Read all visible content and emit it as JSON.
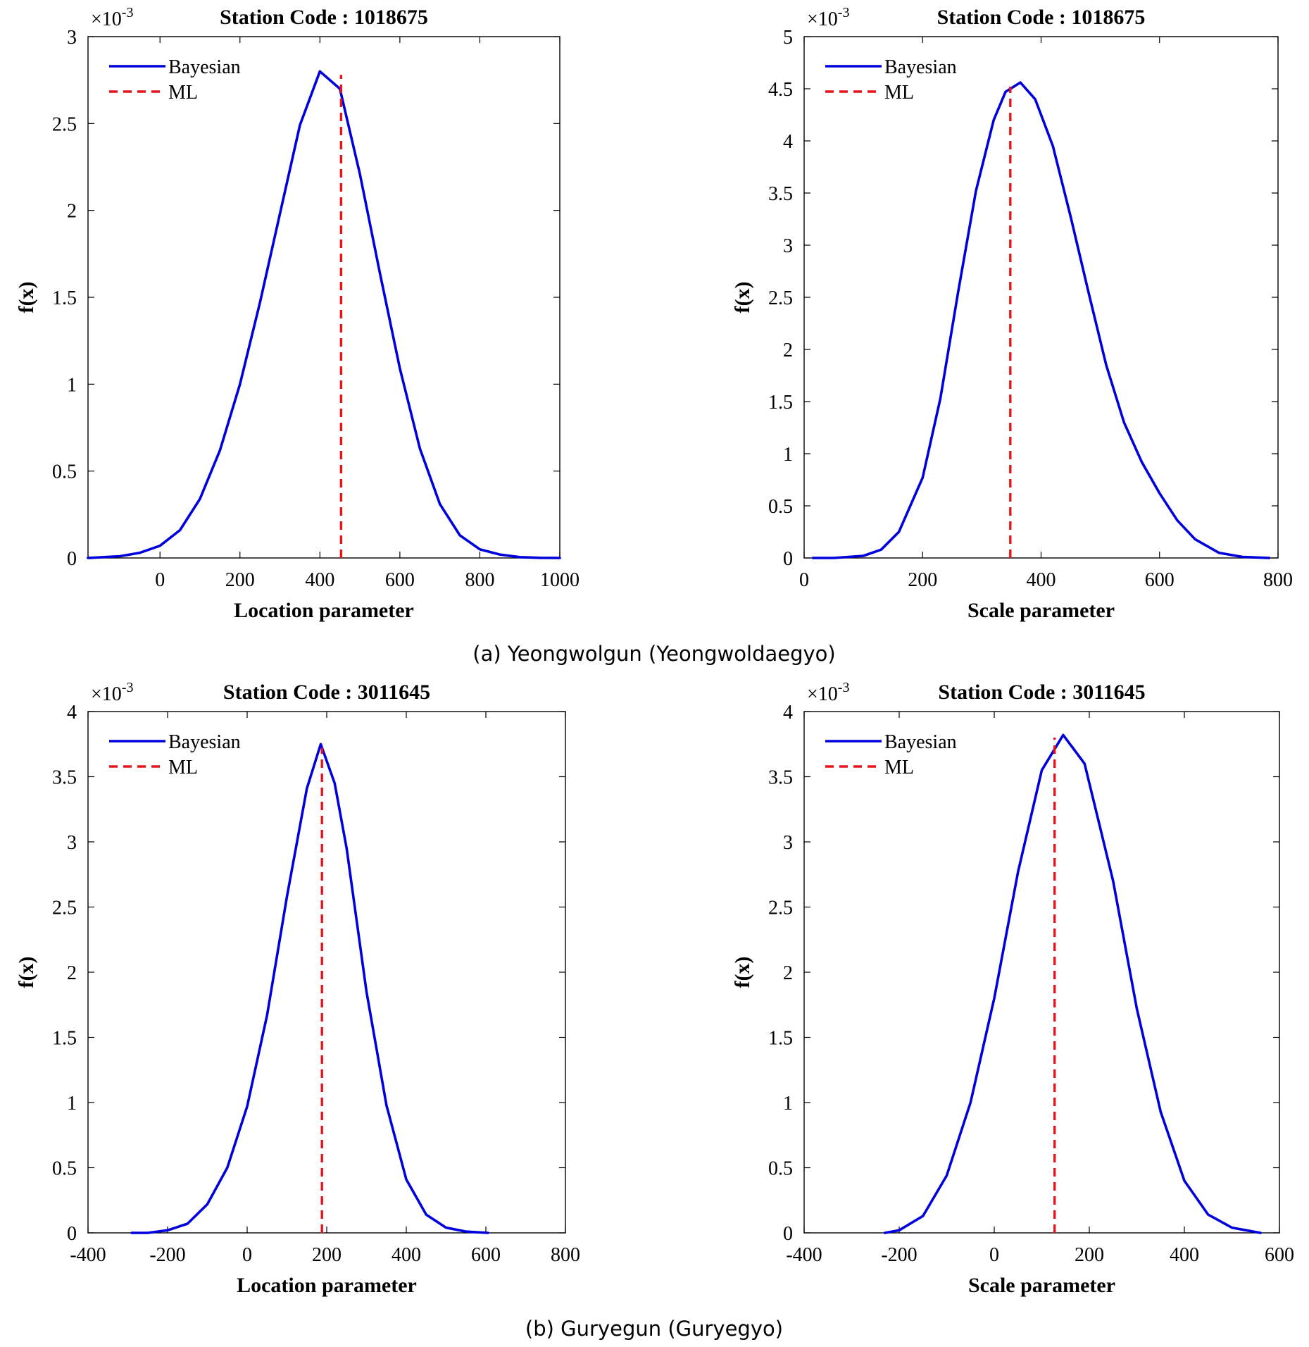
{
  "captions": {
    "a": "(a) Yeongwolgun (Yeongwoldaegyo)",
    "b": "(b) Guryegun (Guryegyo)"
  },
  "colors": {
    "bayesian": "#0000DD",
    "ml": "#E8141B",
    "axis": "#000000"
  },
  "chart_data": [
    {
      "type": "line",
      "title": "Station Code : 1018675",
      "xlabel": "Location parameter",
      "ylabel": "f(x)",
      "y_multiplier": {
        "base": "×10",
        "exp": "-3"
      },
      "xlim": [
        -180,
        1000
      ],
      "ylim": [
        0,
        3
      ],
      "x_ticks": [
        0,
        200,
        400,
        600,
        800,
        1000
      ],
      "x_tick_labels": [
        "0",
        "200",
        "400",
        "600",
        "800",
        "1000"
      ],
      "y_ticks": [
        0,
        0.5,
        1,
        1.5,
        2,
        2.5,
        3
      ],
      "y_tick_labels": [
        "0",
        "0.5",
        "1",
        "1.5",
        "2",
        "2.5",
        "3"
      ],
      "series": [
        {
          "name": "Bayesian",
          "style": "solid",
          "x": [
            -180,
            -100,
            -50,
            0,
            50,
            100,
            150,
            200,
            250,
            300,
            350,
            400,
            450,
            500,
            550,
            600,
            650,
            700,
            750,
            800,
            850,
            900,
            950,
            1000
          ],
          "y": [
            0.0,
            0.01,
            0.03,
            0.07,
            0.16,
            0.34,
            0.62,
            1.0,
            1.47,
            1.98,
            2.49,
            2.8,
            2.7,
            2.21,
            1.64,
            1.09,
            0.63,
            0.31,
            0.13,
            0.05,
            0.02,
            0.005,
            0.001,
            0.0
          ]
        },
        {
          "name": "ML",
          "style": "dashed",
          "x": [
            453,
            453
          ],
          "y": [
            0,
            2.78
          ]
        }
      ],
      "legend": "top-left",
      "grid": false
    },
    {
      "type": "line",
      "title": "Station Code : 1018675",
      "xlabel": "Scale parameter",
      "ylabel": "f(x)",
      "y_multiplier": {
        "base": "×10",
        "exp": "-3"
      },
      "xlim": [
        0,
        800
      ],
      "ylim": [
        0,
        5
      ],
      "x_ticks": [
        0,
        200,
        400,
        600,
        800
      ],
      "x_tick_labels": [
        "0",
        "200",
        "400",
        "600",
        "800"
      ],
      "y_ticks": [
        0,
        0.5,
        1,
        1.5,
        2,
        2.5,
        3,
        3.5,
        4,
        4.5,
        5
      ],
      "y_tick_labels": [
        "0",
        "0.5",
        "1",
        "1.5",
        "2",
        "2.5",
        "3",
        "3.5",
        "4",
        "4.5",
        "5"
      ],
      "series": [
        {
          "name": "Bayesian",
          "style": "solid",
          "x": [
            15,
            50,
            100,
            130,
            160,
            200,
            230,
            260,
            290,
            320,
            340,
            365,
            390,
            420,
            450,
            480,
            510,
            540,
            570,
            600,
            630,
            660,
            700,
            740,
            785
          ],
          "y": [
            0.0,
            0.0,
            0.02,
            0.08,
            0.25,
            0.77,
            1.53,
            2.55,
            3.52,
            4.2,
            4.47,
            4.56,
            4.4,
            3.95,
            3.27,
            2.55,
            1.85,
            1.3,
            0.92,
            0.62,
            0.36,
            0.18,
            0.05,
            0.01,
            0.0
          ]
        },
        {
          "name": "ML",
          "style": "dashed",
          "x": [
            348,
            348
          ],
          "y": [
            0,
            4.52
          ]
        }
      ],
      "legend": "top-left",
      "grid": false
    },
    {
      "type": "line",
      "title": "Station Code : 3011645",
      "xlabel": "Location parameter",
      "ylabel": "f(x)",
      "y_multiplier": {
        "base": "×10",
        "exp": "-3"
      },
      "xlim": [
        -400,
        800
      ],
      "ylim": [
        0,
        4
      ],
      "x_ticks": [
        -400,
        -200,
        0,
        200,
        400,
        600,
        800
      ],
      "x_tick_labels": [
        "-400",
        "-200",
        "0",
        "200",
        "400",
        "600",
        "800"
      ],
      "y_ticks": [
        0,
        0.5,
        1,
        1.5,
        2,
        2.5,
        3,
        3.5,
        4
      ],
      "y_tick_labels": [
        "0",
        "0.5",
        "1",
        "1.5",
        "2",
        "2.5",
        "3",
        "3.5",
        "4"
      ],
      "series": [
        {
          "name": "Bayesian",
          "style": "solid",
          "x": [
            -290,
            -250,
            -200,
            -150,
            -100,
            -50,
            0,
            50,
            100,
            150,
            185,
            220,
            250,
            300,
            350,
            400,
            450,
            500,
            550,
            605
          ],
          "y": [
            0.0,
            0.0,
            0.02,
            0.07,
            0.22,
            0.5,
            0.97,
            1.67,
            2.58,
            3.41,
            3.75,
            3.45,
            2.95,
            1.85,
            0.98,
            0.41,
            0.14,
            0.04,
            0.01,
            0.0
          ]
        },
        {
          "name": "ML",
          "style": "dashed",
          "x": [
            188,
            188
          ],
          "y": [
            0,
            3.72
          ]
        }
      ],
      "legend": "top-left",
      "grid": false
    },
    {
      "type": "line",
      "title": "Station Code : 3011645",
      "xlabel": "Scale parameter",
      "ylabel": "f(x)",
      "y_multiplier": {
        "base": "×10",
        "exp": "-3"
      },
      "xlim": [
        -400,
        600
      ],
      "ylim": [
        0,
        4
      ],
      "x_ticks": [
        -400,
        -200,
        0,
        200,
        400,
        600
      ],
      "x_tick_labels": [
        "-400",
        "-200",
        "0",
        "200",
        "400",
        "600"
      ],
      "y_ticks": [
        0,
        0.5,
        1,
        1.5,
        2,
        2.5,
        3,
        3.5,
        4
      ],
      "y_tick_labels": [
        "0",
        "0.5",
        "1",
        "1.5",
        "2",
        "2.5",
        "3",
        "3.5",
        "4"
      ],
      "series": [
        {
          "name": "Bayesian",
          "style": "solid",
          "x": [
            -230,
            -200,
            -150,
            -100,
            -50,
            0,
            50,
            100,
            145,
            190,
            250,
            300,
            350,
            400,
            450,
            500,
            560
          ],
          "y": [
            0.0,
            0.02,
            0.13,
            0.44,
            1.0,
            1.8,
            2.77,
            3.55,
            3.82,
            3.6,
            2.7,
            1.72,
            0.93,
            0.4,
            0.14,
            0.04,
            0.0
          ]
        },
        {
          "name": "ML",
          "style": "dashed",
          "x": [
            127,
            127
          ],
          "y": [
            0,
            3.8
          ]
        }
      ],
      "legend": "top-left",
      "grid": false
    }
  ]
}
